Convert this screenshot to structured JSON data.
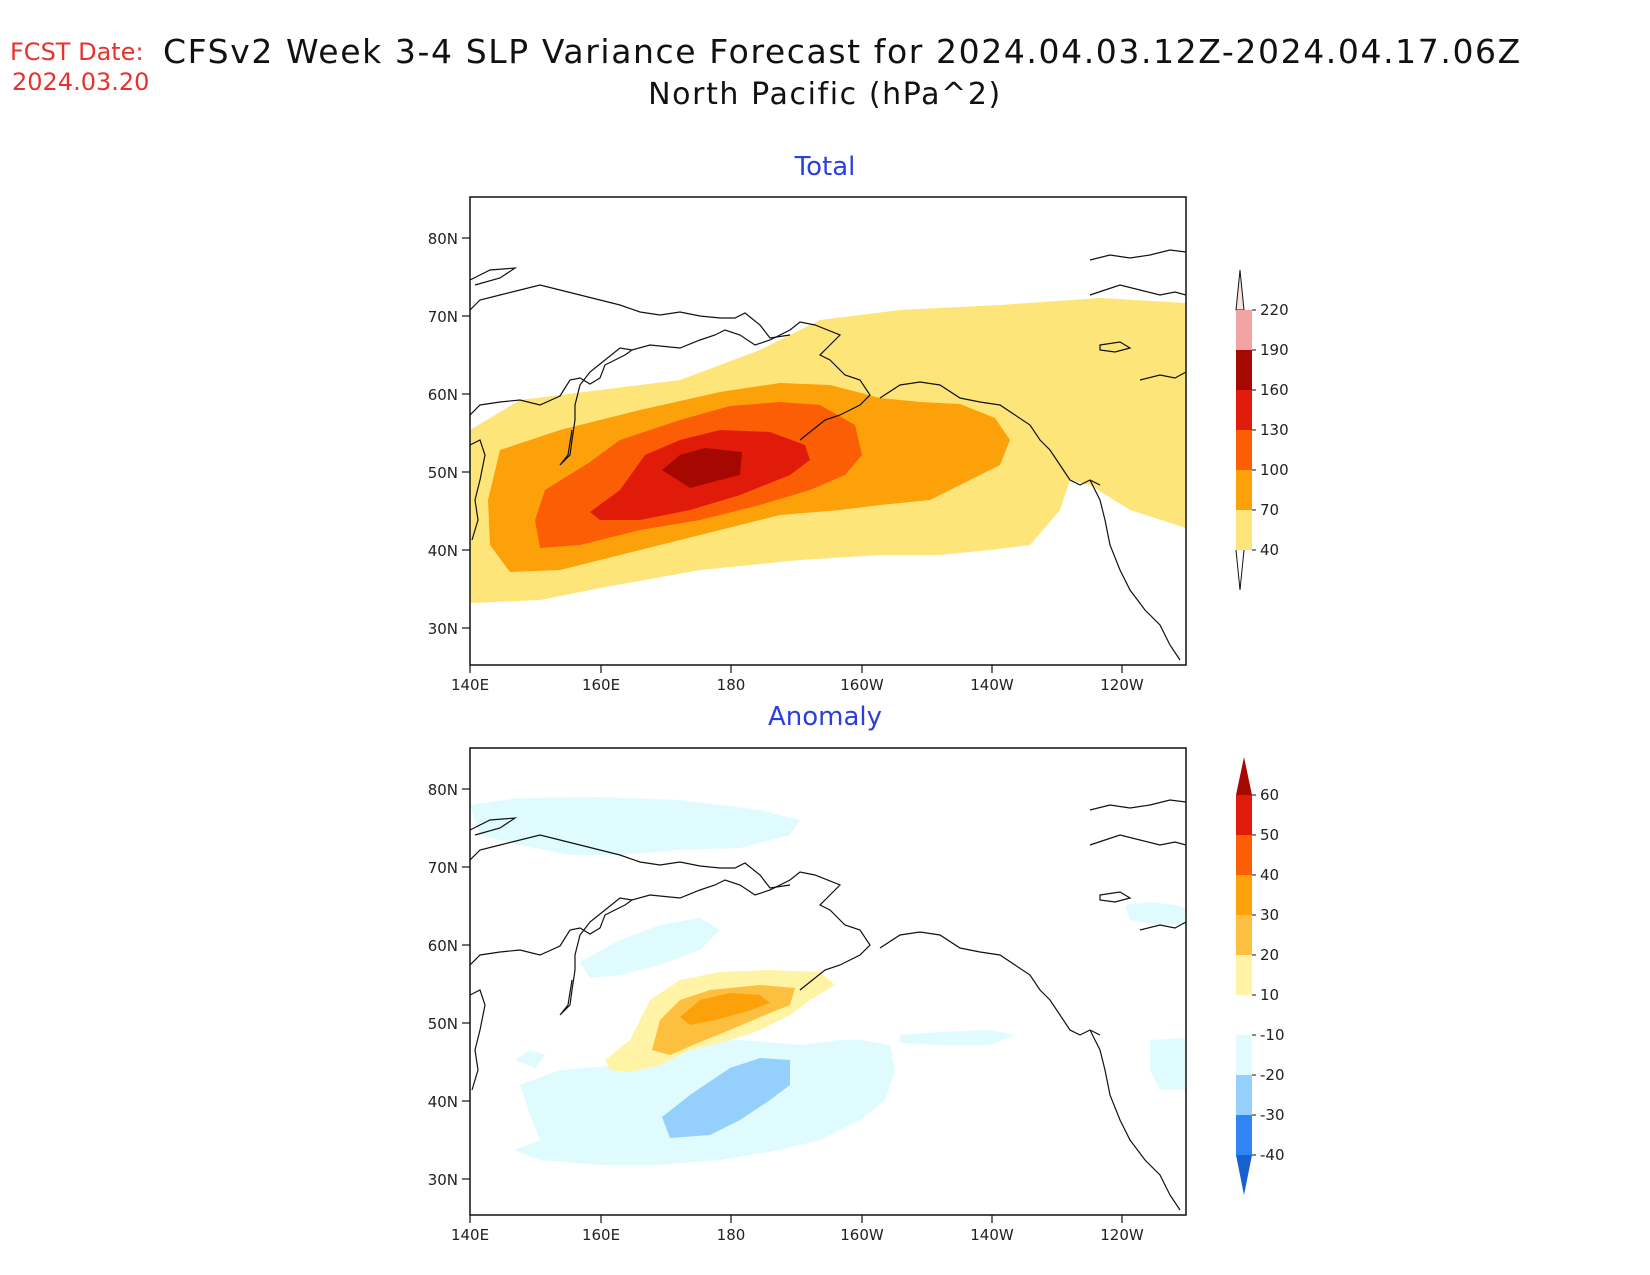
{
  "header": {
    "fcst_label": "FCST Date:",
    "fcst_date": "2024.03.20",
    "title": "CFSv2 Week 3-4 SLP Variance Forecast for 2024.04.03.12Z-2024.04.17.06Z",
    "subtitle": "North Pacific (hPa^2)"
  },
  "panels": [
    {
      "title": "Total",
      "lat_labels": [
        "80N",
        "70N",
        "60N",
        "50N",
        "40N",
        "30N"
      ],
      "lon_labels": [
        "140E",
        "160E",
        "180",
        "160W",
        "140W",
        "120W"
      ],
      "colorbar": {
        "levels": [
          "40",
          "70",
          "100",
          "130",
          "160",
          "190",
          "220"
        ],
        "colors": [
          "#fee57a",
          "#fda10a",
          "#fc5e05",
          "#e01b0a",
          "#a40800",
          "#f2a3a3",
          "#fbe0e0"
        ]
      }
    },
    {
      "title": "Anomaly",
      "lat_labels": [
        "80N",
        "70N",
        "60N",
        "50N",
        "40N",
        "30N"
      ],
      "lon_labels": [
        "140E",
        "160E",
        "180",
        "160W",
        "140W",
        "120W"
      ],
      "colorbar": {
        "levels": [
          "60",
          "50",
          "40",
          "30",
          "20",
          "10",
          "-10",
          "-20",
          "-30",
          "-40"
        ],
        "colors_top_to_bottom": [
          "#a40800",
          "#e01b0a",
          "#fc5e05",
          "#fda10a",
          "#fdbf3f",
          "#fff4a6",
          "#ffffff",
          "#dffbfe",
          "#94d0fb",
          "#2d86f3",
          "#1660d0"
        ]
      }
    }
  ]
}
